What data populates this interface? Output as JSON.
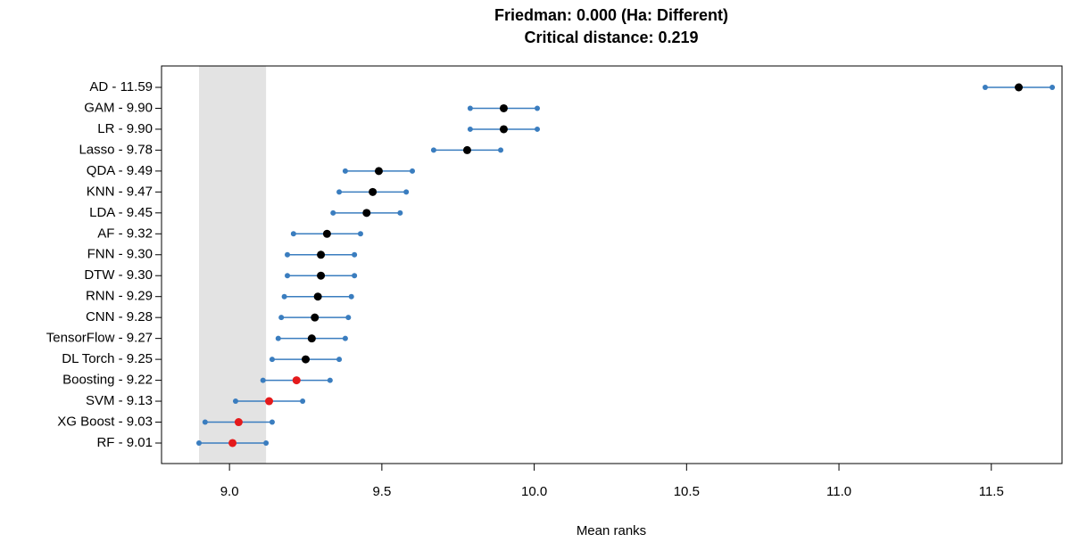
{
  "chart_data": {
    "type": "dot",
    "title": "Friedman: 0.000 (Ha: Different)",
    "subtitle": "Critical distance: 0.219",
    "xlabel": "Mean ranks",
    "categories": [
      "AD - 11.59",
      "GAM - 9.90",
      "LR - 9.90",
      "Lasso - 9.78",
      "QDA - 9.49",
      "KNN - 9.47",
      "LDA - 9.45",
      "AF - 9.32",
      "FNN - 9.30",
      "DTW - 9.30",
      "RNN - 9.29",
      "CNN - 9.28",
      "TensorFlow - 9.27",
      "DL Torch - 9.25",
      "Boosting - 9.22",
      "SVM - 9.13",
      "XG Boost - 9.03",
      "RF - 9.01"
    ],
    "values": [
      11.59,
      9.9,
      9.9,
      9.78,
      9.49,
      9.47,
      9.45,
      9.32,
      9.3,
      9.3,
      9.29,
      9.28,
      9.27,
      9.25,
      9.22,
      9.13,
      9.03,
      9.01
    ],
    "lower": [
      11.48,
      9.79,
      9.79,
      9.67,
      9.38,
      9.36,
      9.34,
      9.21,
      9.19,
      9.19,
      9.18,
      9.17,
      9.16,
      9.14,
      9.11,
      9.02,
      8.92,
      8.9
    ],
    "upper": [
      11.7,
      10.01,
      10.01,
      9.89,
      9.6,
      9.58,
      9.56,
      9.43,
      9.41,
      9.41,
      9.4,
      9.39,
      9.38,
      9.36,
      9.33,
      9.24,
      9.14,
      9.12
    ],
    "point_colors": [
      "#000000",
      "#000000",
      "#000000",
      "#000000",
      "#000000",
      "#000000",
      "#000000",
      "#000000",
      "#000000",
      "#000000",
      "#000000",
      "#000000",
      "#000000",
      "#000000",
      "#e41a1c",
      "#e41a1c",
      "#e41a1c",
      "#e41a1c"
    ],
    "interval_color": "#3a7dbf",
    "shaded_range": [
      8.9,
      9.12
    ],
    "shade_color": "#e3e3e3",
    "xlim": [
      8.777,
      11.732
    ],
    "xticks": [
      {
        "value": 9.0,
        "label": "9.0"
      },
      {
        "value": 9.5,
        "label": "9.5"
      },
      {
        "value": 10.0,
        "label": "10.0"
      },
      {
        "value": 10.5,
        "label": "10.5"
      },
      {
        "value": 11.0,
        "label": "11.0"
      },
      {
        "value": 11.5,
        "label": "11.5"
      }
    ]
  }
}
